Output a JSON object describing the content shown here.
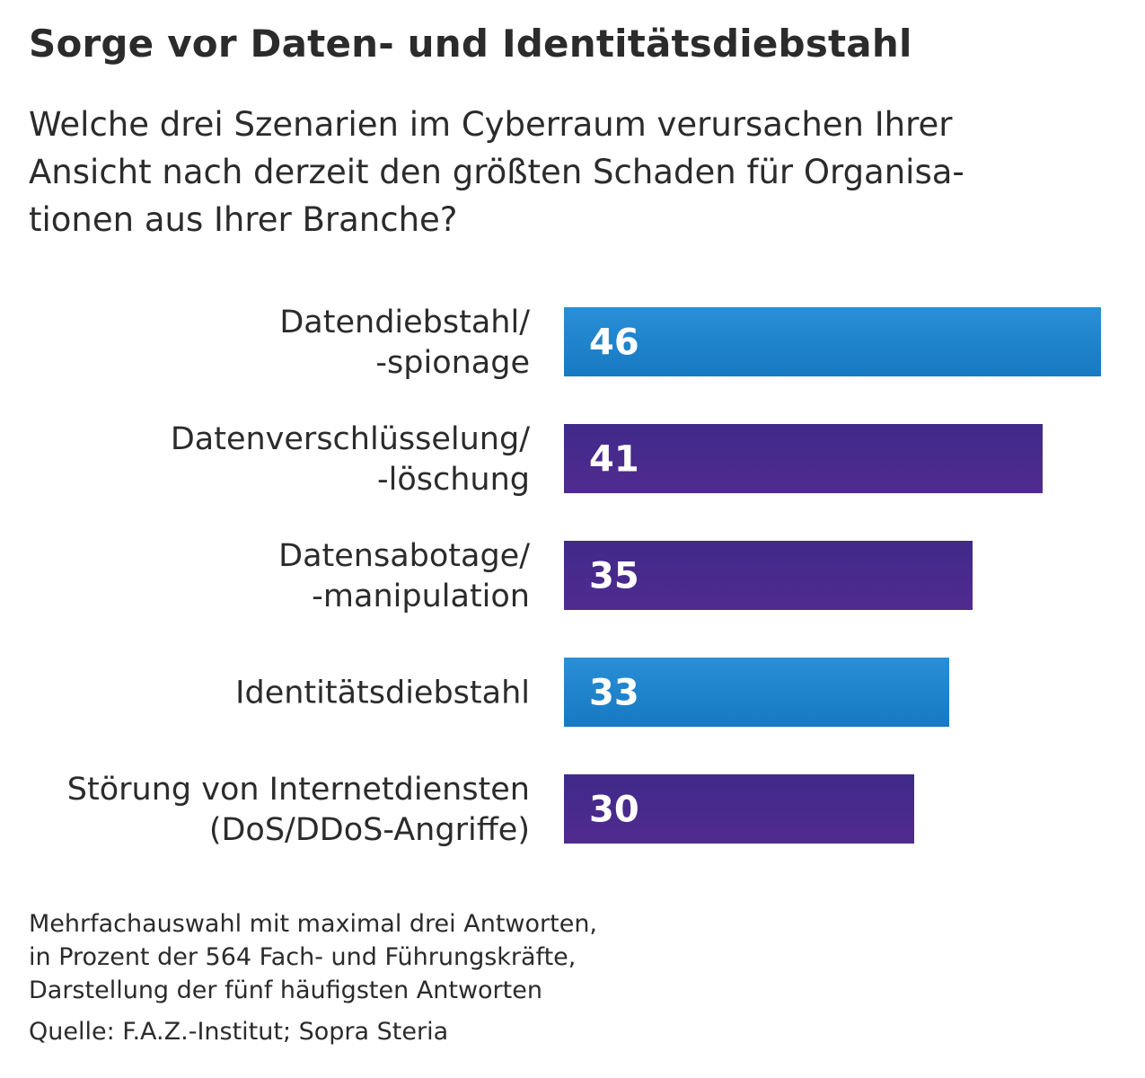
{
  "chart_data": {
    "type": "bar",
    "orientation": "horizontal",
    "title": "Sorge vor Daten- und Identitätsdiebstahl",
    "subtitle_lines": [
      "Welche drei Szenarien im Cyberraum verursachen Ihrer",
      "Ansicht nach derzeit den größten Schaden für Organisa-",
      "tionen aus Ihrer Branche?"
    ],
    "categories": [
      [
        "Datendiebstahl/",
        "-spionage"
      ],
      [
        "Datenverschlüsselung/",
        "-löschung"
      ],
      [
        "Datensabotage/",
        "-manipulation"
      ],
      [
        "Identitätsdiebstahl"
      ],
      [
        "Störung von Internetdiensten",
        "(DoS/DDoS-Angriffe)"
      ]
    ],
    "values": [
      46,
      41,
      35,
      33,
      30
    ],
    "value_labels": [
      "46",
      "41",
      "35",
      "33",
      "30"
    ],
    "bar_colors": [
      "#1a7fc8",
      "#4b2a8c",
      "#4b2a8c",
      "#1a7fc8",
      "#4b2a8c"
    ],
    "xlim": [
      0,
      46
    ],
    "unit": "Prozent",
    "notes": [
      "Mehrfachauswahl mit maximal drei Antworten,",
      "in Prozent der 564 Fach- und Führungskräfte,",
      "Darstellung der fünf häufigsten Antworten"
    ],
    "source": "Quelle: F.A.Z.-Institut; Sopra Steria"
  }
}
